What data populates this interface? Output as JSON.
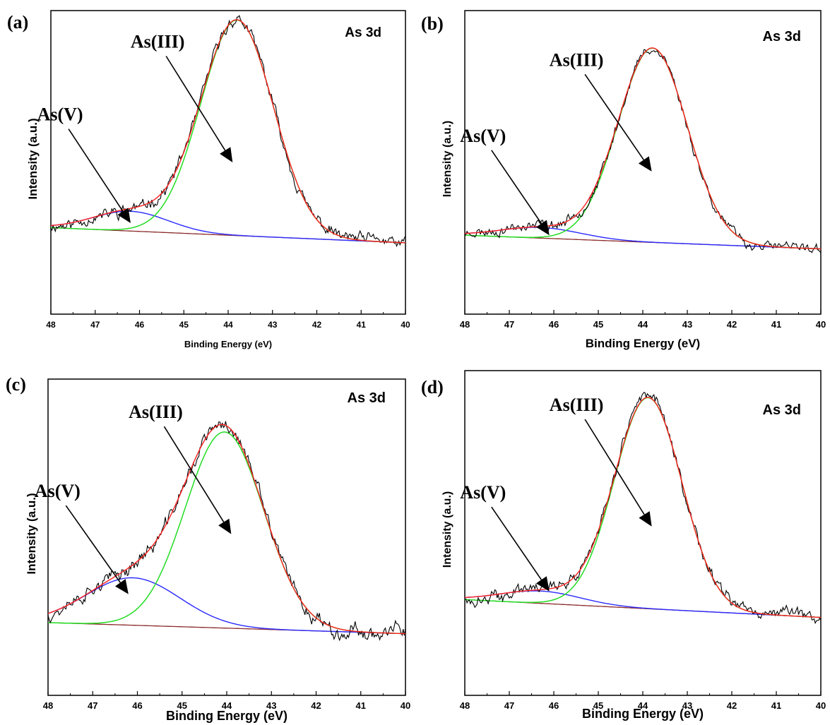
{
  "chart_data": [
    {
      "type": "line",
      "panel_label": "(a)",
      "corner_label": "As 3d",
      "xlabel": "Binding Energy (eV)",
      "ylabel": "Intensity (a.u.)",
      "xlim": [
        48,
        40
      ],
      "ylim": [
        0,
        100
      ],
      "x_ticks": [
        "48",
        "47",
        "46",
        "45",
        "44",
        "43",
        "42",
        "41",
        "40"
      ],
      "baseline": [
        [
          48,
          28.5
        ],
        [
          40,
          23.5
        ]
      ],
      "peaks": [
        {
          "name": "As(III)",
          "center": 43.8,
          "amp": 71,
          "sigma": 0.82
        },
        {
          "name": "As(V)",
          "center": 46.2,
          "amp": 6.5,
          "sigma": 0.85
        }
      ],
      "noise_amp": 1.3,
      "noise_seed": 11,
      "annotations": [
        {
          "text": "As(III)",
          "arrow_from": [
            45.4,
            85
          ],
          "arrow_to": [
            43.9,
            50
          ]
        },
        {
          "text": "As(V)",
          "arrow_from": [
            47.6,
            61
          ],
          "arrow_to": [
            46.2,
            30
          ]
        }
      ]
    },
    {
      "type": "line",
      "panel_label": "(b)",
      "corner_label": "As 3d",
      "xlabel": "Binding Energy (eV)",
      "ylabel": "Intensity (a.u.)",
      "xlim": [
        48,
        40
      ],
      "ylim": [
        0,
        100
      ],
      "x_ticks": [
        "48",
        "47",
        "46",
        "45",
        "44",
        "43",
        "42",
        "41",
        "40"
      ],
      "baseline": [
        [
          48,
          26
        ],
        [
          40,
          21.5
        ]
      ],
      "peaks": [
        {
          "name": "As(III)",
          "center": 43.78,
          "amp": 64,
          "sigma": 0.78
        },
        {
          "name": "As(V)",
          "center": 46.3,
          "amp": 3.5,
          "sigma": 0.9
        }
      ],
      "noise_amp": 1.1,
      "noise_seed": 23,
      "annotations": [
        {
          "text": "As(III)",
          "arrow_from": [
            45.3,
            79
          ],
          "arrow_to": [
            43.8,
            47
          ]
        },
        {
          "text": "As(V)",
          "arrow_from": [
            47.4,
            54
          ],
          "arrow_to": [
            46.1,
            26
          ]
        }
      ]
    },
    {
      "type": "line",
      "panel_label": "(c)",
      "corner_label": "As 3d",
      "xlabel": "Binding Energy (eV)",
      "ylabel": "Intensity (a.u.)",
      "xlim": [
        48,
        40
      ],
      "ylim": [
        0,
        100
      ],
      "x_ticks": [
        "48",
        "47",
        "46",
        "45",
        "44",
        "43",
        "42",
        "41",
        "40"
      ],
      "baseline": [
        [
          48,
          23
        ],
        [
          40,
          19.5
        ]
      ],
      "peaks": [
        {
          "name": "As(III)",
          "center": 44.05,
          "amp": 62,
          "sigma": 0.88
        },
        {
          "name": "As(V)",
          "center": 46.1,
          "amp": 15,
          "sigma": 1.05
        }
      ],
      "noise_amp": 1.5,
      "noise_seed": 37,
      "annotations": [
        {
          "text": "As(III)",
          "arrow_from": [
            45.4,
            85
          ],
          "arrow_to": [
            43.9,
            51
          ]
        },
        {
          "text": "As(V)",
          "arrow_from": [
            47.6,
            60
          ],
          "arrow_to": [
            46.2,
            32
          ]
        }
      ]
    },
    {
      "type": "line",
      "panel_label": "(d)",
      "corner_label": "As 3d",
      "xlabel": "Binding Energy (eV)",
      "ylabel": "Intensity (a.u.)",
      "xlim": [
        48,
        40
      ],
      "ylim": [
        0,
        100
      ],
      "x_ticks": [
        "48",
        "47",
        "46",
        "45",
        "44",
        "43",
        "42",
        "41",
        "40"
      ],
      "baseline": [
        [
          48,
          29.5
        ],
        [
          40,
          24
        ]
      ],
      "peaks": [
        {
          "name": "As(III)",
          "center": 43.88,
          "amp": 65,
          "sigma": 0.76
        },
        {
          "name": "As(V)",
          "center": 46.3,
          "amp": 3.8,
          "sigma": 0.9
        }
      ],
      "noise_amp": 1.2,
      "noise_seed": 49,
      "annotations": [
        {
          "text": "As(III)",
          "arrow_from": [
            45.3,
            85
          ],
          "arrow_to": [
            43.8,
            52
          ]
        },
        {
          "text": "As(V)",
          "arrow_from": [
            47.4,
            58
          ],
          "arrow_to": [
            46.1,
            32
          ]
        }
      ]
    }
  ],
  "colors": {
    "raw": "#000000",
    "envelope": "#ff2020",
    "as_iii": "#22dd22",
    "as_v": "#2a2aff",
    "baseline": "#8b2a2a"
  }
}
